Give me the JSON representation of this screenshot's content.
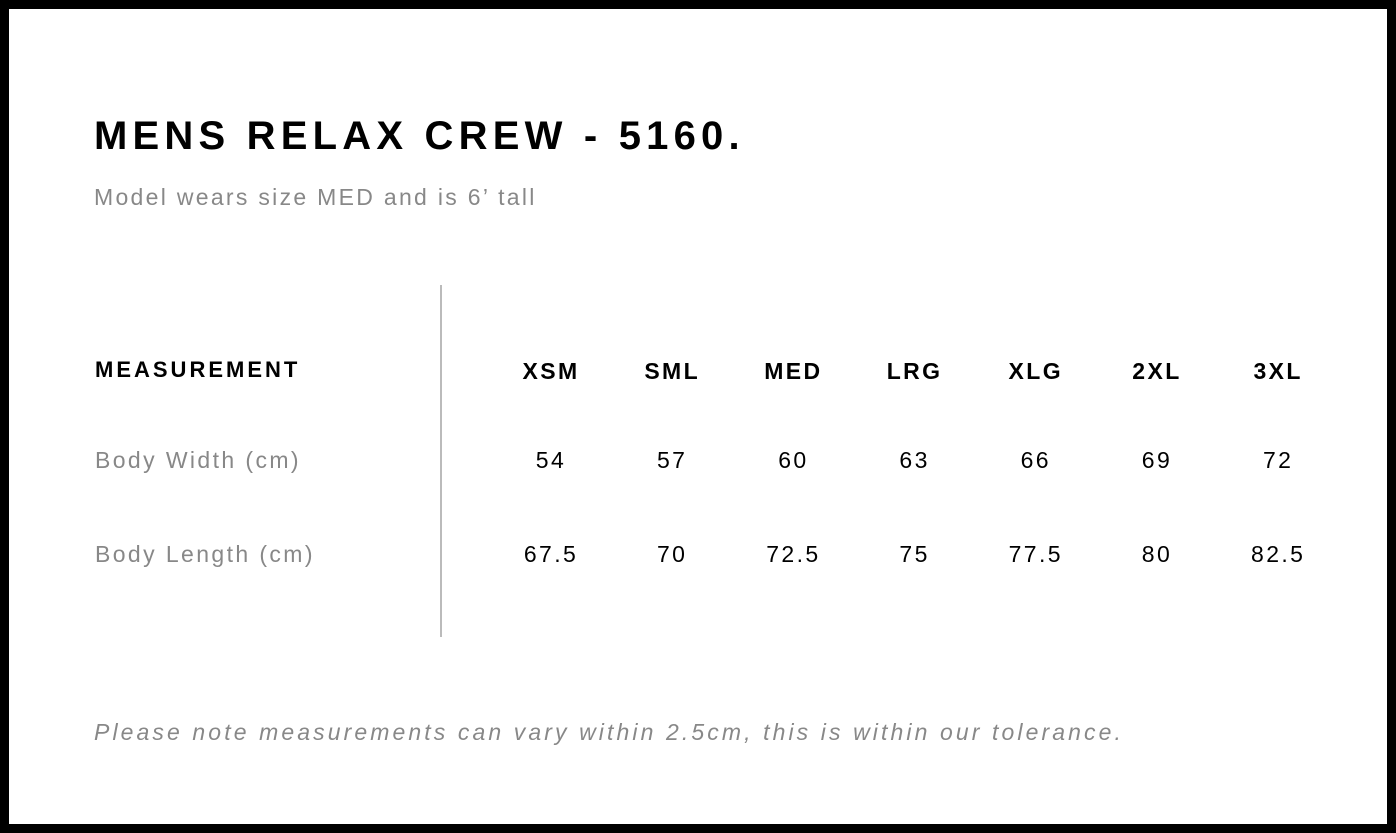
{
  "title": "MENS RELAX CREW - 5160.",
  "subtitle": "Model wears size MED and is 6’ tall",
  "table": {
    "header_label": "MEASUREMENT",
    "sizes": [
      "XSM",
      "SML",
      "MED",
      "LRG",
      "XLG",
      "2XL",
      "3XL"
    ],
    "rows": [
      {
        "label": "Body Width (cm)",
        "values": [
          "54",
          "57",
          "60",
          "63",
          "66",
          "69",
          "72"
        ]
      },
      {
        "label": "Body Length (cm)",
        "values": [
          "67.5",
          "70",
          "72.5",
          "75",
          "77.5",
          "80",
          "82.5"
        ]
      }
    ]
  },
  "note": "Please note measurements can vary within 2.5cm, this is within our tolerance."
}
